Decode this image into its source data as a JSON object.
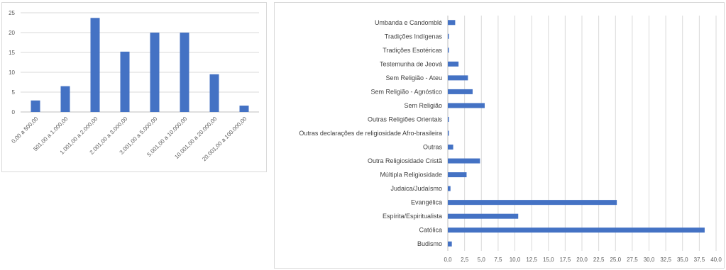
{
  "colors": {
    "bar": "#4472c4",
    "grid": "#d9d9d9",
    "axis": "#bfbfbf",
    "text": "#595959"
  },
  "chart_data": [
    {
      "type": "bar",
      "title": "",
      "xlabel": "",
      "ylabel": "",
      "categories": [
        "0,00 a 500,00",
        "501,00 a 1.000,00",
        "1.001,00 a 2.000,00",
        "2.001,00 a 3.000,00",
        "3.001,00 a 5.000,00",
        "5.001,00 a 10.000,00",
        "10.001,00 a 20.000,00",
        "20.001,00 a 100.000,00"
      ],
      "values": [
        2.9,
        6.5,
        23.7,
        15.2,
        20.0,
        20.0,
        9.5,
        1.6
      ],
      "ylim": [
        0,
        25
      ],
      "yticks": [
        "0",
        "5",
        "10",
        "15",
        "20",
        "25"
      ],
      "grid": true,
      "legend": "none"
    },
    {
      "type": "bar",
      "orientation": "horizontal",
      "title": "",
      "xlabel": "",
      "ylabel": "",
      "categories": [
        "Umbanda e Candomblé",
        "Tradições Indígenas",
        "Tradições Esotéricas",
        "Testemunha de Jeová",
        "Sem Religião - Ateu",
        "Sem Religião - Agnóstico",
        "Sem Religião",
        "Outras Religiões Orientais",
        "Outras declarações de religiosidade Afro-brasileira",
        "Outras",
        "Outra Religiosidade Cristã",
        "Múltipla Religiosidade",
        "Judaica/Judaísmo",
        "Evangélica",
        "Espírita/Espiritualista",
        "Católica",
        "Budismo"
      ],
      "values": [
        1.1,
        0.1,
        0.1,
        1.6,
        3.0,
        3.7,
        5.5,
        0.1,
        0.1,
        0.8,
        4.8,
        2.8,
        0.4,
        25.2,
        10.5,
        38.3,
        0.6
      ],
      "xlim": [
        0,
        40
      ],
      "xticks": [
        "0,0",
        "2,5",
        "5,0",
        "7,5",
        "10,0",
        "12,5",
        "15,0",
        "17,5",
        "20,0",
        "22,5",
        "25,0",
        "27,5",
        "30,0",
        "32,5",
        "35,0",
        "37,5",
        "40,0"
      ],
      "grid": true,
      "legend": "none"
    }
  ]
}
